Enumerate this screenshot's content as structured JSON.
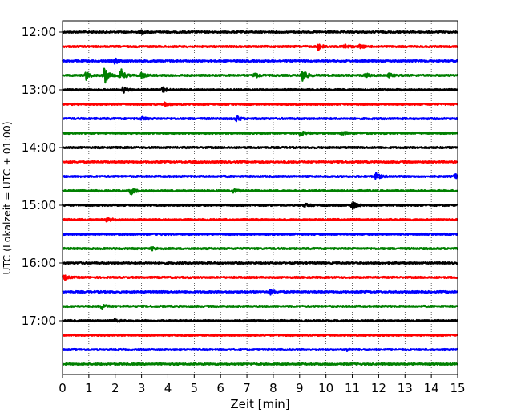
{
  "chart_data": {
    "type": "line",
    "title": "",
    "xlabel": "Zeit  [min]",
    "ylabel": "UTC (Lokalzeit = UTC + 01:00)",
    "xlim": [
      0,
      15
    ],
    "x_ticks": [
      "0",
      "1",
      "2",
      "3",
      "4",
      "5",
      "6",
      "7",
      "8",
      "9",
      "10",
      "11",
      "12",
      "13",
      "14",
      "15"
    ],
    "y_ticks": [
      "12:00",
      "13:00",
      "14:00",
      "15:00",
      "16:00",
      "17:00"
    ],
    "grid": "vertical dotted lines at each minute",
    "trace_interval_minutes": 15,
    "color_cycle": [
      "#000000",
      "#ff0000",
      "#0000ff",
      "#008000"
    ],
    "series": [
      {
        "start": "12:00",
        "events": [
          {
            "x": 3.0,
            "amp": 0.3
          }
        ]
      },
      {
        "start": "12:15",
        "events": [
          {
            "x": 9.7,
            "amp": 0.55
          },
          {
            "x": 10.7,
            "amp": 0.35
          },
          {
            "x": 11.3,
            "amp": 0.25
          }
        ]
      },
      {
        "start": "12:30",
        "events": [
          {
            "x": 2.0,
            "amp": 0.4
          }
        ]
      },
      {
        "start": "12:45",
        "events": [
          {
            "x": 0.9,
            "amp": 0.6
          },
          {
            "x": 1.6,
            "amp": 1.1
          },
          {
            "x": 2.2,
            "amp": 1.0
          },
          {
            "x": 3.0,
            "amp": 0.4
          },
          {
            "x": 7.3,
            "amp": 0.35
          },
          {
            "x": 9.1,
            "amp": 1.2
          },
          {
            "x": 11.5,
            "amp": 0.3
          },
          {
            "x": 12.4,
            "amp": 0.25
          }
        ]
      },
      {
        "start": "13:00",
        "events": [
          {
            "x": 2.3,
            "amp": 0.4
          },
          {
            "x": 3.8,
            "amp": 0.35
          }
        ]
      },
      {
        "start": "13:15",
        "events": [
          {
            "x": 3.9,
            "amp": 0.25
          }
        ]
      },
      {
        "start": "13:30",
        "events": [
          {
            "x": 6.6,
            "amp": 0.4
          },
          {
            "x": 3.0,
            "amp": 0.2
          }
        ]
      },
      {
        "start": "13:45",
        "events": [
          {
            "x": 9.0,
            "amp": 0.4
          },
          {
            "x": 10.6,
            "amp": 0.3
          }
        ]
      },
      {
        "start": "14:00",
        "events": []
      },
      {
        "start": "14:15",
        "events": [
          {
            "x": 5.0,
            "amp": 0.2
          }
        ]
      },
      {
        "start": "14:30",
        "events": [
          {
            "x": 11.9,
            "amp": 0.45
          },
          {
            "x": 14.9,
            "amp": 0.3
          }
        ]
      },
      {
        "start": "14:45",
        "events": [
          {
            "x": 2.6,
            "amp": 0.45
          },
          {
            "x": 6.5,
            "amp": 0.2
          }
        ]
      },
      {
        "start": "15:00",
        "events": [
          {
            "x": 9.2,
            "amp": 0.2
          },
          {
            "x": 11.0,
            "amp": 0.6
          }
        ]
      },
      {
        "start": "15:15",
        "events": [
          {
            "x": 1.7,
            "amp": 0.4
          }
        ]
      },
      {
        "start": "15:30",
        "events": []
      },
      {
        "start": "15:45",
        "events": [
          {
            "x": 3.4,
            "amp": 0.2
          }
        ]
      },
      {
        "start": "16:00",
        "events": []
      },
      {
        "start": "16:15",
        "events": [
          {
            "x": 0.05,
            "amp": 0.35
          }
        ]
      },
      {
        "start": "16:30",
        "events": [
          {
            "x": 7.9,
            "amp": 0.3
          }
        ]
      },
      {
        "start": "16:45",
        "events": [
          {
            "x": 1.5,
            "amp": 0.35
          }
        ]
      },
      {
        "start": "17:00",
        "events": [
          {
            "x": 2.0,
            "amp": 0.2
          }
        ]
      },
      {
        "start": "17:15",
        "events": []
      },
      {
        "start": "17:30",
        "events": [
          {
            "x": 10.8,
            "amp": 0.15
          }
        ]
      },
      {
        "start": "17:45",
        "events": []
      }
    ]
  }
}
